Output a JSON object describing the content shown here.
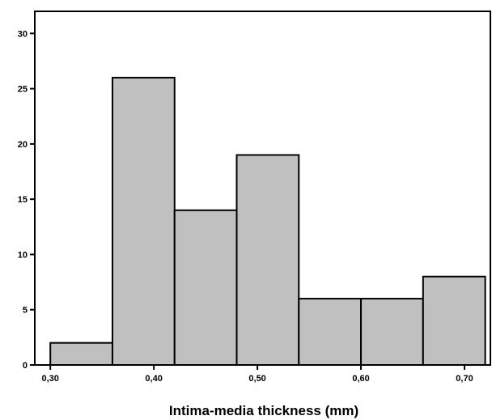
{
  "chart_data": {
    "type": "bar",
    "title": "",
    "xlabel": "Intima-media thickness (mm)",
    "ylabel": "",
    "bins": [
      {
        "from": 0.3,
        "to": 0.36,
        "value": 2
      },
      {
        "from": 0.36,
        "to": 0.42,
        "value": 26
      },
      {
        "from": 0.42,
        "to": 0.48,
        "value": 14
      },
      {
        "from": 0.48,
        "to": 0.54,
        "value": 19
      },
      {
        "from": 0.54,
        "to": 0.6,
        "value": 6
      },
      {
        "from": 0.6,
        "to": 0.66,
        "value": 6
      },
      {
        "from": 0.66,
        "to": 0.72,
        "value": 8
      }
    ],
    "x_ticks": [
      0.3,
      0.4,
      0.5,
      0.6,
      0.7
    ],
    "x_tick_labels": [
      "0,30",
      "0,40",
      "0,50",
      "0,60",
      "0,70"
    ],
    "y_ticks": [
      0,
      5,
      10,
      15,
      20,
      25,
      30
    ],
    "y_tick_labels": [
      "0",
      "5",
      "10",
      "15",
      "20",
      "25",
      "30"
    ],
    "xlim": [
      0.285,
      0.725
    ],
    "ylim": [
      0,
      32
    ],
    "grid": false,
    "colors": {
      "bar_fill": "#c0c0c0",
      "bar_stroke": "#000000"
    }
  }
}
